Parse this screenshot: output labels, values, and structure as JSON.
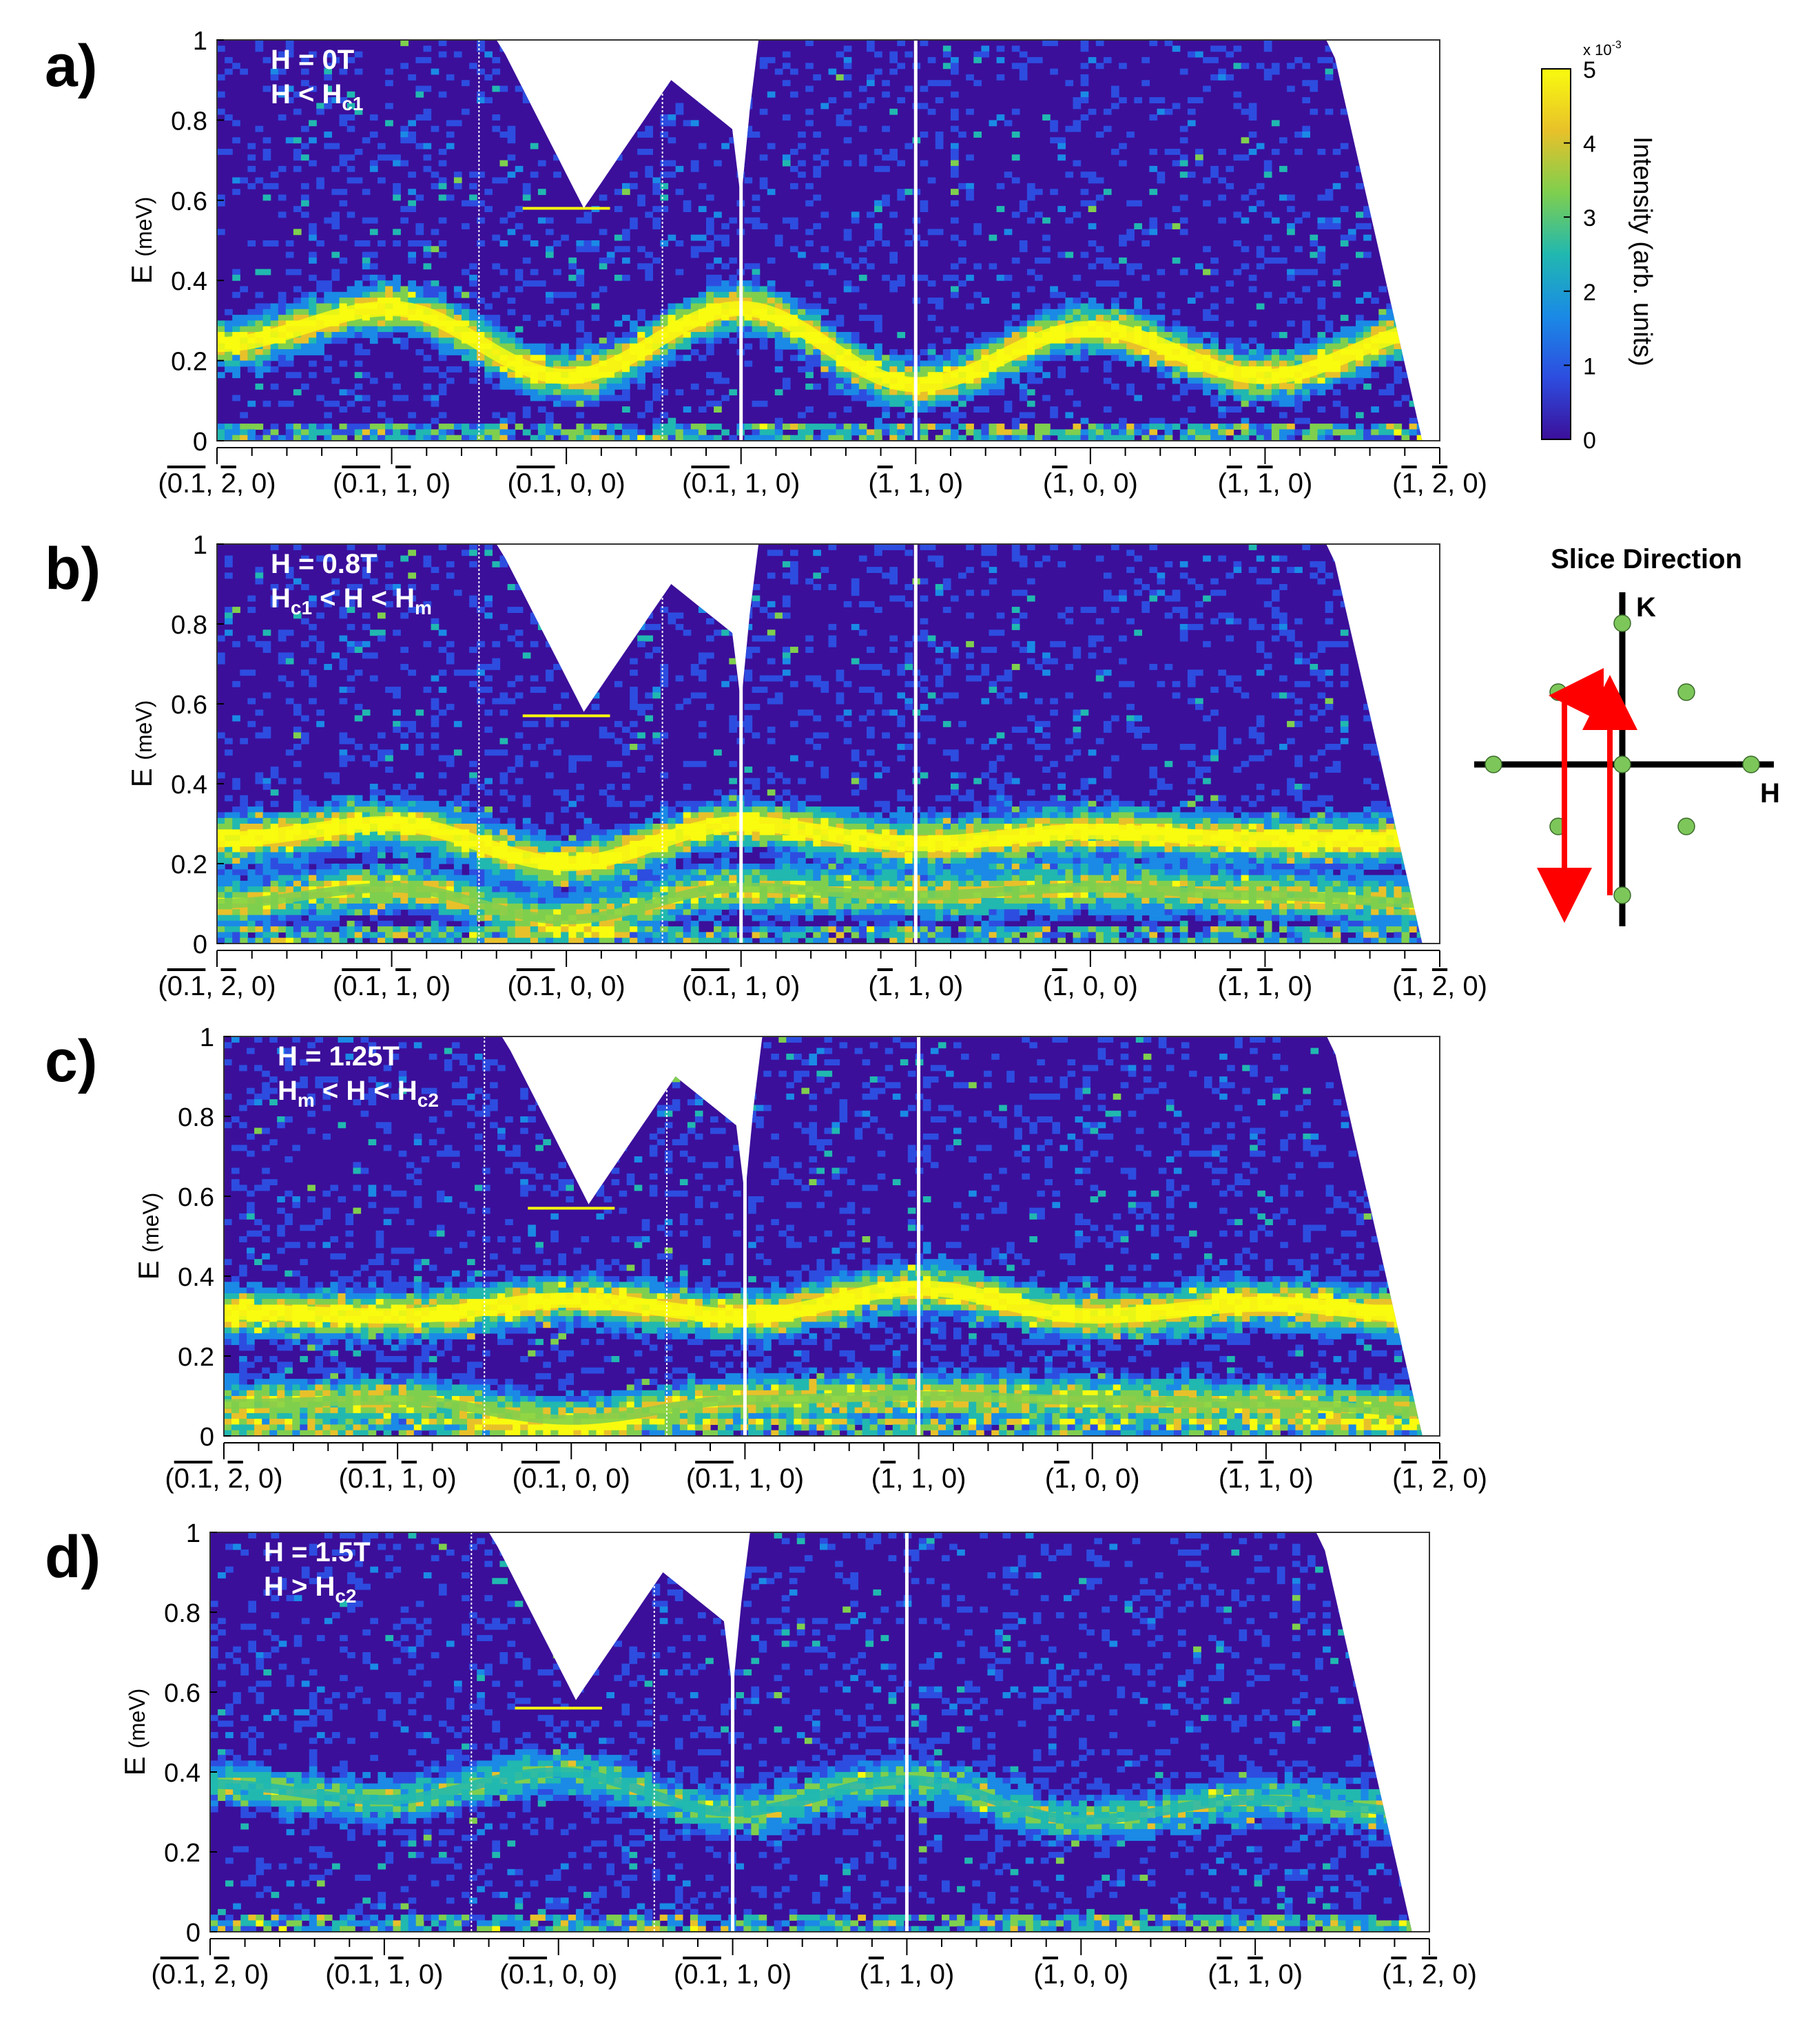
{
  "colorbar": {
    "label": "Intensity (arb. units)",
    "exponent": "x 10",
    "exponent_power": "-3",
    "ticks": [
      "0",
      "1",
      "2",
      "3",
      "4",
      "5"
    ],
    "range": [
      0,
      5
    ],
    "colormap": [
      "#3b0f9a",
      "#2d4de0",
      "#1a8ae6",
      "#21b8b0",
      "#7fcf4e",
      "#e8c12a",
      "#f9fb0e"
    ]
  },
  "inset": {
    "title": "Slice Direction",
    "k_label": "K",
    "h_label": "H",
    "point_color": "#7dc75a",
    "arrow_color": "#ff0000"
  },
  "chart_data": [
    {
      "type": "heatmap",
      "panel_label": "a)",
      "field_label": "H = 0T",
      "regime": {
        "main": "H < H",
        "sub": "c1",
        "rest": ""
      },
      "ylabel": "E",
      "yunit": "(meV)",
      "ylim": [
        0,
        1
      ],
      "yticks": [
        "0",
        "0.2",
        "0.4",
        "0.6",
        "0.8",
        "1"
      ],
      "xticks": [
        {
          "prefix": "(",
          "over": [
            "0.1"
          ],
          "mid": ", ",
          "over2": [
            "2"
          ],
          "suffix": ", 0)"
        },
        {
          "prefix": "(",
          "over": [
            "0.1"
          ],
          "mid": ", ",
          "over2": [
            "1"
          ],
          "suffix": ", 0)"
        },
        {
          "prefix": "(",
          "over": [
            "0.1"
          ],
          "mid": ", 0, 0)",
          "over2": [],
          "suffix": ""
        },
        {
          "prefix": "(",
          "over": [
            "0.1"
          ],
          "mid": ", 1, 0)",
          "over2": [],
          "suffix": ""
        },
        {
          "prefix": "(",
          "over": [
            "1"
          ],
          "mid": ", 1, 0)",
          "over2": [],
          "suffix": ""
        },
        {
          "prefix": "(",
          "over": [
            "1"
          ],
          "mid": ", 0, 0)",
          "over2": [],
          "suffix": ""
        },
        {
          "prefix": "(",
          "over": [
            "1"
          ],
          "mid": ", ",
          "over2": [
            "1"
          ],
          "suffix": ", 0)"
        },
        {
          "prefix": "(",
          "over": [
            "1"
          ],
          "mid": ", ",
          "over2": [
            "2"
          ],
          "suffix": ", 0)"
        }
      ],
      "bands": [
        {
          "center": [
            0.24,
            0.33,
            0.16,
            0.33,
            0.14,
            0.28,
            0.16,
            0.28
          ],
          "intensity": 5
        }
      ],
      "gap_marker_energy": 0.58
    },
    {
      "type": "heatmap",
      "panel_label": "b)",
      "field_label": "H = 0.8T",
      "regime": {
        "main": "H",
        "sub": "c1",
        "rest": " < H < H",
        "sub2": "m"
      },
      "ylabel": "E",
      "yunit": "(meV)",
      "ylim": [
        0,
        1
      ],
      "yticks": [
        "0",
        "0.2",
        "0.4",
        "0.6",
        "0.8",
        "1"
      ],
      "xticks": "same",
      "bands": [
        {
          "center": [
            0.26,
            0.3,
            0.2,
            0.3,
            0.25,
            0.28,
            0.26,
            0.26
          ],
          "intensity": 5
        },
        {
          "center": [
            0.1,
            0.14,
            0.06,
            0.14,
            0.12,
            0.14,
            0.12,
            0.1
          ],
          "intensity": 4
        }
      ],
      "gap_marker_energy": 0.57
    },
    {
      "type": "heatmap",
      "panel_label": "c)",
      "field_label": "H = 1.25T",
      "regime": {
        "main": "H",
        "sub": "m",
        "rest": " < H < H",
        "sub2": "c2"
      },
      "ylabel": "E",
      "yunit": "(meV)",
      "ylim": [
        0,
        1
      ],
      "yticks": [
        "0",
        "0.2",
        "0.4",
        "0.6",
        "0.8",
        "1"
      ],
      "xticks": "same",
      "bands": [
        {
          "center": [
            0.31,
            0.3,
            0.34,
            0.3,
            0.37,
            0.3,
            0.33,
            0.3
          ],
          "intensity": 5
        },
        {
          "center": [
            0.08,
            0.09,
            0.04,
            0.09,
            0.1,
            0.09,
            0.08,
            0.06
          ],
          "intensity": 4
        }
      ],
      "gap_marker_energy": 0.57
    },
    {
      "type": "heatmap",
      "panel_label": "d)",
      "field_label": "H = 1.5T",
      "regime": {
        "main": "H > H",
        "sub": "c2",
        "rest": ""
      },
      "ylabel": "E",
      "yunit": "(meV)",
      "ylim": [
        0,
        1
      ],
      "yticks": [
        "0",
        "0.2",
        "0.4",
        "0.6",
        "0.8",
        "1"
      ],
      "xticks": "same",
      "bands": [
        {
          "center": [
            0.37,
            0.33,
            0.4,
            0.3,
            0.38,
            0.28,
            0.33,
            0.3
          ],
          "intensity": 3
        }
      ],
      "gap_marker_energy": 0.56
    }
  ]
}
